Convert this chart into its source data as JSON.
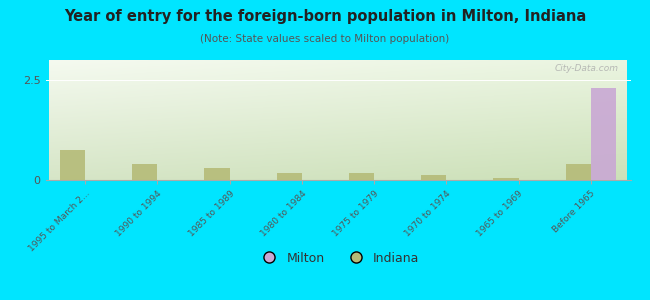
{
  "title": "Year of entry for the foreign-born population in Milton, Indiana",
  "subtitle": "(Note: State values scaled to Milton population)",
  "background_color": "#00e5ff",
  "categories": [
    "1995 to March 2...",
    "1990 to 1994",
    "1985 to 1989",
    "1980 to 1984",
    "1975 to 1979",
    "1970 to 1974",
    "1965 to 1969",
    "Before 1965"
  ],
  "milton_values": [
    0,
    0,
    0,
    0,
    0,
    0,
    0,
    2.3
  ],
  "indiana_values": [
    0.75,
    0.4,
    0.3,
    0.18,
    0.18,
    0.13,
    0.06,
    0.4
  ],
  "milton_color": "#c9a8d4",
  "indiana_color": "#b5bb78",
  "ylim": [
    0,
    3.0
  ],
  "yticks": [
    0,
    2.5
  ],
  "bar_width": 0.35,
  "watermark": "City-Data.com",
  "legend_milton": "Milton",
  "legend_indiana": "Indiana"
}
